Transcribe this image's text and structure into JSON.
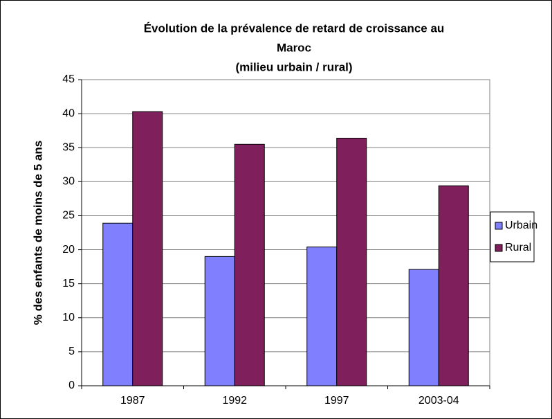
{
  "chart_data": {
    "type": "bar",
    "title": [
      "Évolution de la prévalence de retard de croissance au",
      "Maroc",
      "(milieu urbain / rural)"
    ],
    "y_label": "% des enfants de moins de 5 ans",
    "categories": [
      "1987",
      "1992",
      "1997",
      "2003-04"
    ],
    "series": [
      {
        "name": "Urbain",
        "color": "#8080ff",
        "values": [
          23.9,
          19.0,
          20.4,
          17.1
        ]
      },
      {
        "name": "Rural",
        "color": "#7f1f5c",
        "values": [
          40.3,
          35.5,
          36.4,
          29.4
        ]
      }
    ],
    "ylim": [
      0,
      45
    ],
    "yticks": [
      0,
      5,
      10,
      15,
      20,
      25,
      30,
      35,
      40,
      45
    ],
    "grid": true,
    "legend": "right"
  }
}
